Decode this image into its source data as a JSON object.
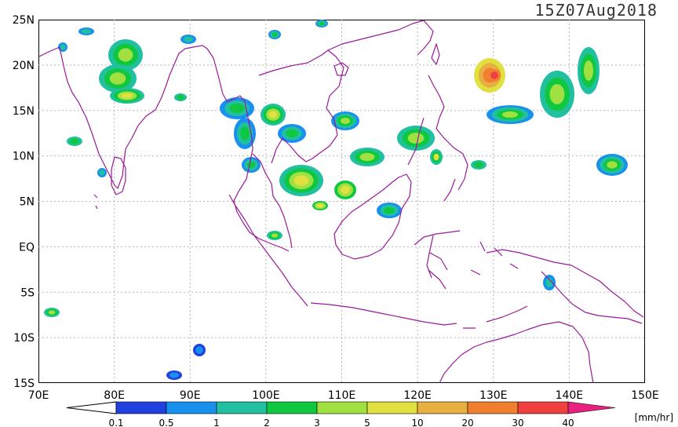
{
  "title": "15Z07Aug2018",
  "map": {
    "lat_labels": [
      "25N",
      "20N",
      "15N",
      "10N",
      "5N",
      "EQ",
      "5S",
      "10S",
      "15S"
    ],
    "lon_labels": [
      "70E",
      "80E",
      "90E",
      "100E",
      "110E",
      "120E",
      "130E",
      "140E",
      "150E"
    ],
    "grid": "dotted"
  },
  "colorbar": {
    "unit": "[mm/hr]",
    "ticks": [
      "0.1",
      "0.5",
      "1",
      "2",
      "3",
      "5",
      "10",
      "20",
      "30",
      "40"
    ],
    "colors": [
      "#2040e0",
      "#1890f0",
      "#20c0a0",
      "#10c840",
      "#a0e040",
      "#e0e040",
      "#e8b040",
      "#f08030",
      "#f04040",
      "#e82080"
    ],
    "low_color": "#ffffff"
  },
  "colors": {
    "coast": "#9a1a9a",
    "frame": "#000000"
  }
}
